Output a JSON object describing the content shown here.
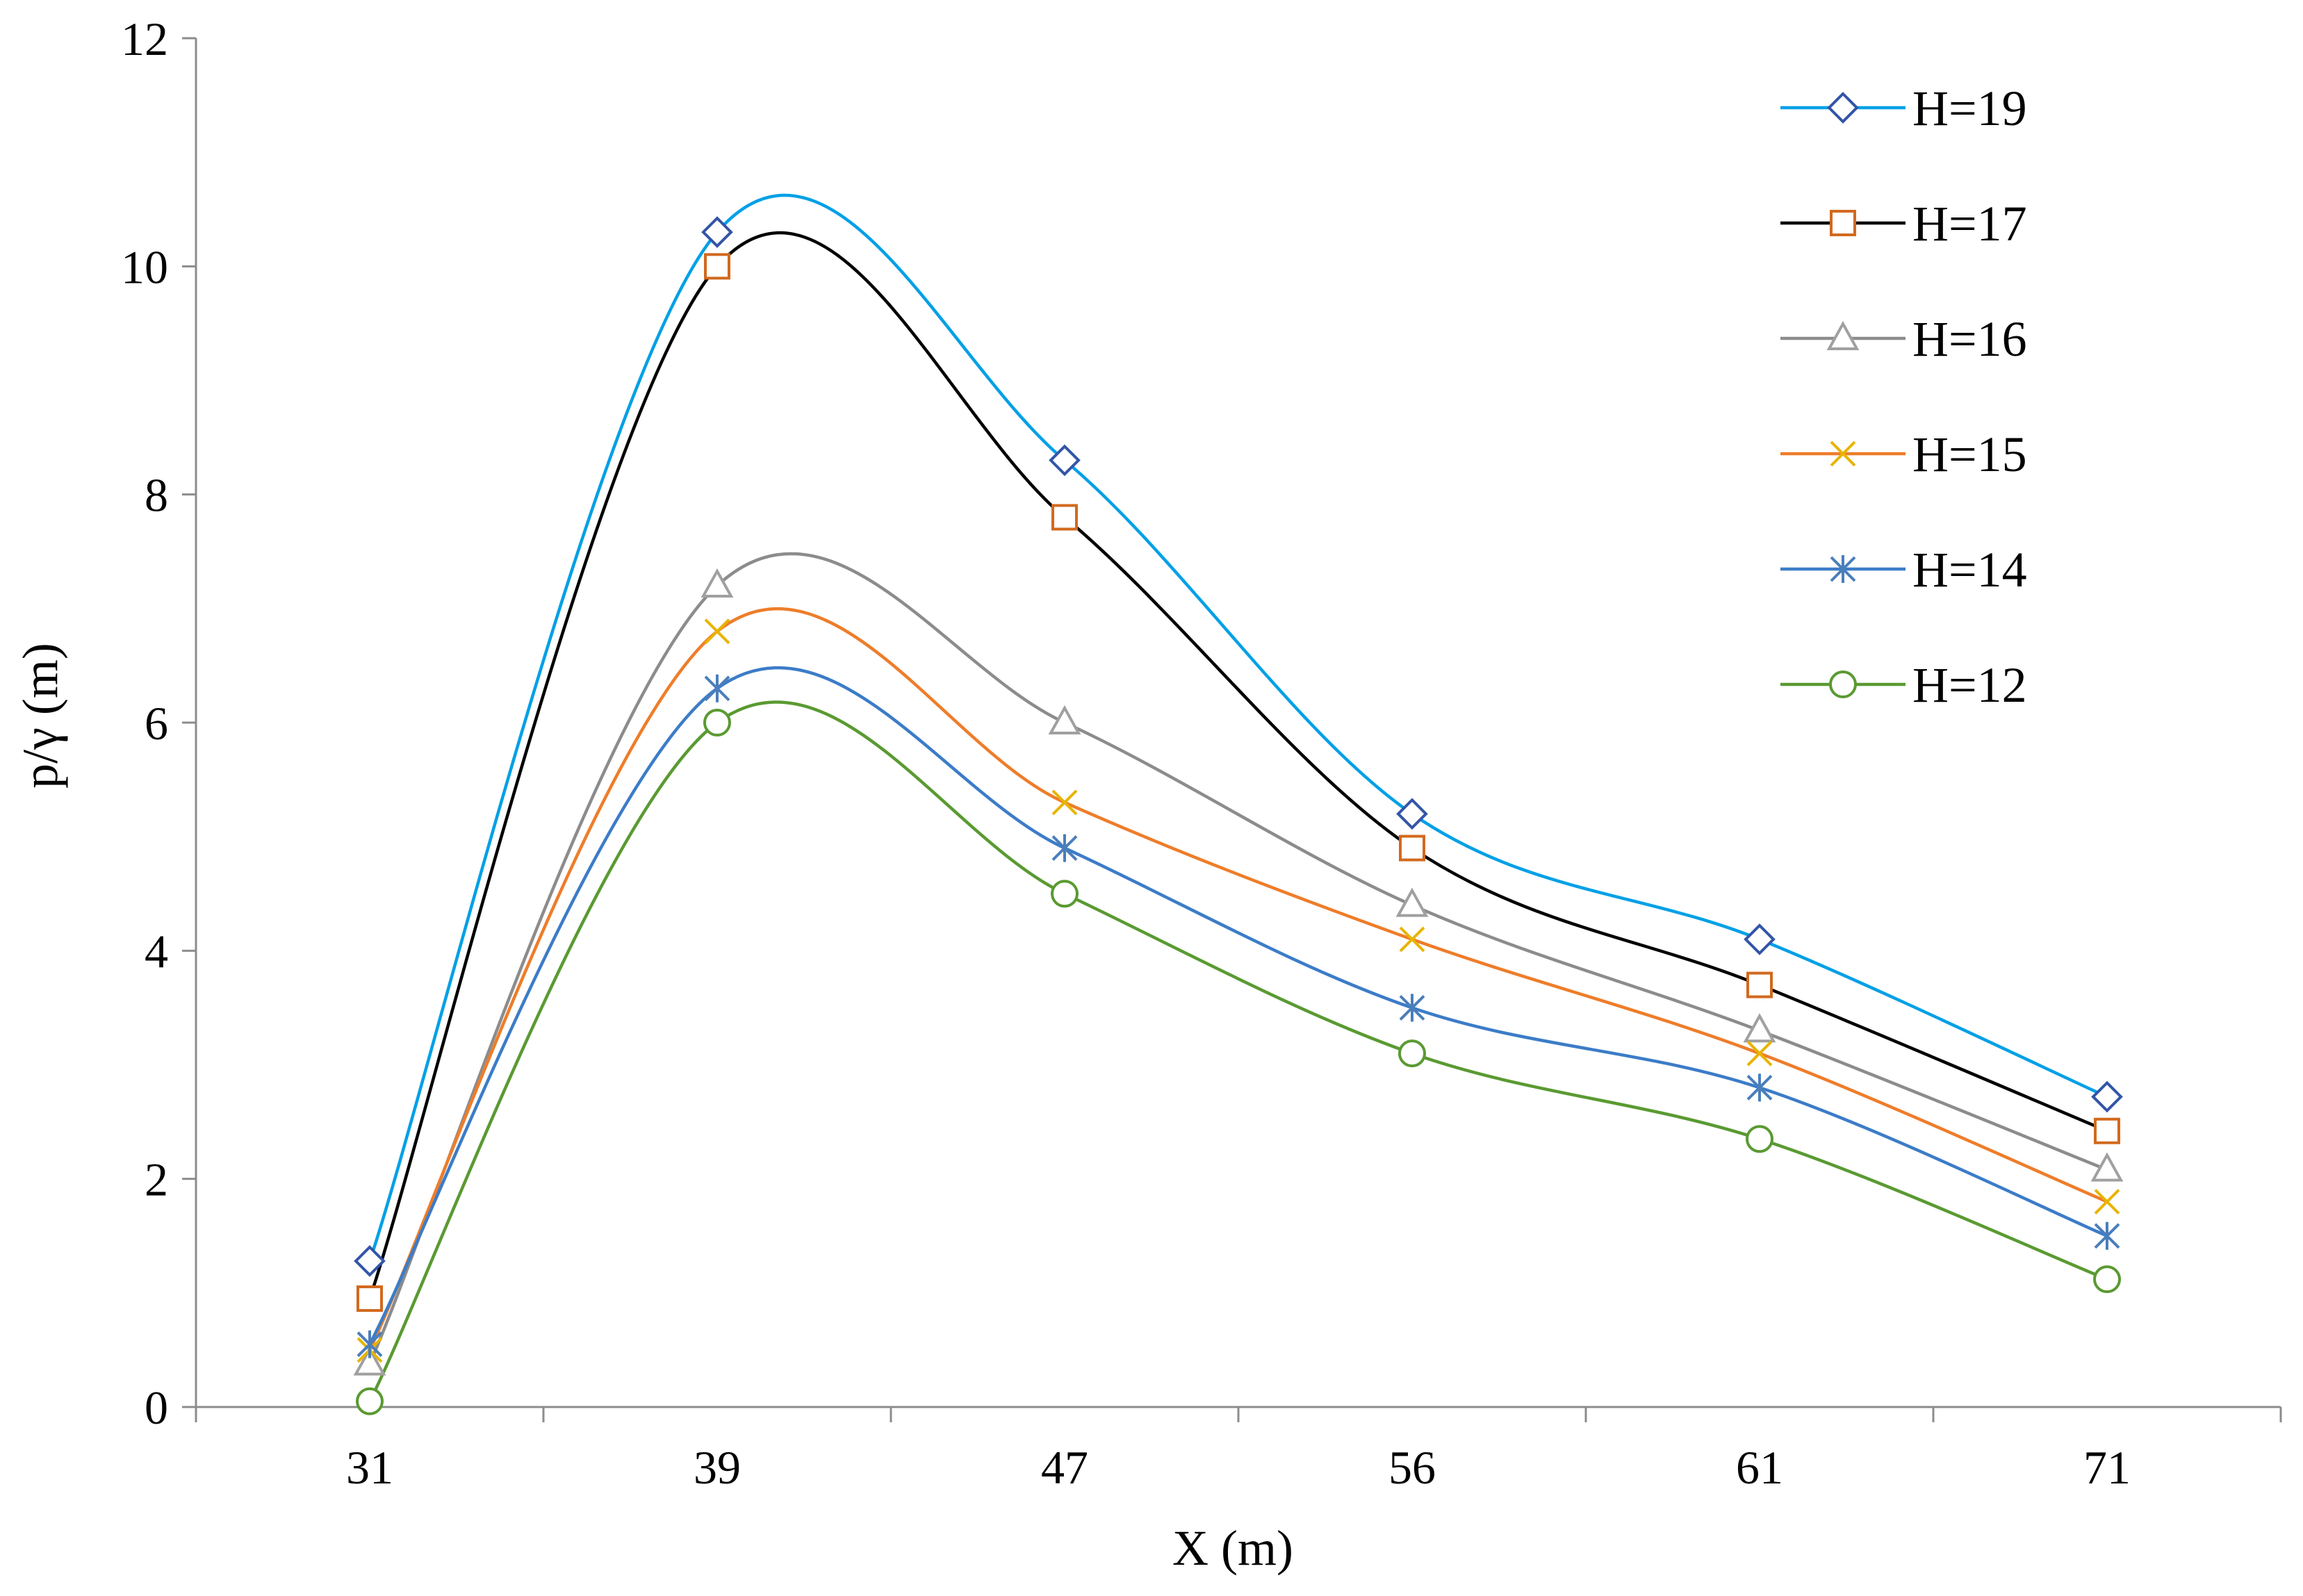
{
  "chart_data": {
    "type": "line",
    "title": "",
    "xlabel": "X (m)",
    "ylabel": "p/γ (m)",
    "categories": [
      "31",
      "39",
      "47",
      "56",
      "61",
      "71"
    ],
    "ylim": [
      0,
      12
    ],
    "yticks": [
      0,
      2,
      4,
      6,
      8,
      10,
      12
    ],
    "grid": false,
    "smooth": true,
    "legend_position": "top-right",
    "series": [
      {
        "name": "H=19",
        "values": [
          1.28,
          10.3,
          8.3,
          5.2,
          4.1,
          2.72
        ],
        "line_color": "#00A0E6",
        "marker_color": "#3355A8",
        "marker": "diamond"
      },
      {
        "name": "H=17",
        "values": [
          0.95,
          10.0,
          7.8,
          4.9,
          3.7,
          2.42
        ],
        "line_color": "#000000",
        "marker_color": "#D2691E",
        "marker": "square"
      },
      {
        "name": "H=16",
        "values": [
          0.38,
          7.2,
          6.0,
          4.4,
          3.3,
          2.08
        ],
        "line_color": "#8C8C8C",
        "marker_color": "#A0A0A0",
        "marker": "triangle"
      },
      {
        "name": "H=15",
        "values": [
          0.5,
          6.8,
          5.3,
          4.1,
          3.1,
          1.8
        ],
        "line_color": "#EE7D2A",
        "marker_color": "#E8B400",
        "marker": "x"
      },
      {
        "name": "H=14",
        "values": [
          0.55,
          6.3,
          4.9,
          3.5,
          2.8,
          1.5
        ],
        "line_color": "#3C7CC8",
        "marker_color": "#4A7EBB",
        "marker": "star"
      },
      {
        "name": "H=12",
        "values": [
          0.05,
          6.0,
          4.5,
          3.1,
          2.35,
          1.12
        ],
        "line_color": "#5A9A32",
        "marker_color": "#5A9A32",
        "marker": "circle"
      }
    ]
  }
}
